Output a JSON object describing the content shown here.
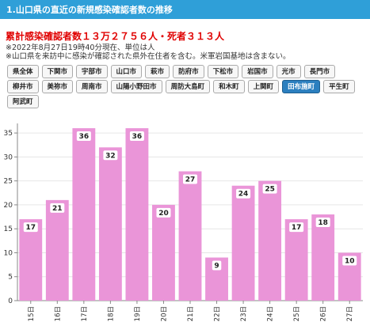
{
  "header": {
    "title": "1.山口県の直近の新規感染確認者数の推移"
  },
  "summary": {
    "headline": "累計感染確認者数１３万２７５６人・死者３１３人",
    "note1": "※2022年8月27日19時40分現在、単位は人",
    "note2": "※山口県を来訪中に感染が確認された県外在住者を含む。米軍岩国基地は含まない。"
  },
  "filters": {
    "row1": [
      "県全体",
      "下関市",
      "宇部市",
      "山口市",
      "萩市",
      "防府市",
      "下松市",
      "岩国市",
      "光市",
      "長門市"
    ],
    "row2": [
      "柳井市",
      "美祢市",
      "周南市",
      "山陽小野田市",
      "周防大島町",
      "和木町",
      "上関町",
      "田布施町",
      "平生町"
    ],
    "row3": [
      "阿武町"
    ],
    "active": "田布施町"
  },
  "colors": {
    "bar": "#ea95d8",
    "header": "#2f9fd8",
    "headline": "#e00000",
    "active_button": "#2b7fbf"
  },
  "chart_data": {
    "type": "bar",
    "categories": [
      "15日",
      "16日",
      "17日",
      "18日",
      "19日",
      "20日",
      "21日",
      "22日",
      "23日",
      "24日",
      "25日",
      "26日",
      "27日"
    ],
    "values": [
      17,
      21,
      36,
      32,
      36,
      20,
      27,
      9,
      24,
      25,
      17,
      18,
      10
    ],
    "title": "",
    "xlabel": "",
    "ylabel": "",
    "ylim": [
      0,
      37
    ],
    "yticks": [
      0,
      5,
      10,
      15,
      20,
      25,
      30,
      35
    ],
    "grid": true,
    "data_labels": true
  }
}
